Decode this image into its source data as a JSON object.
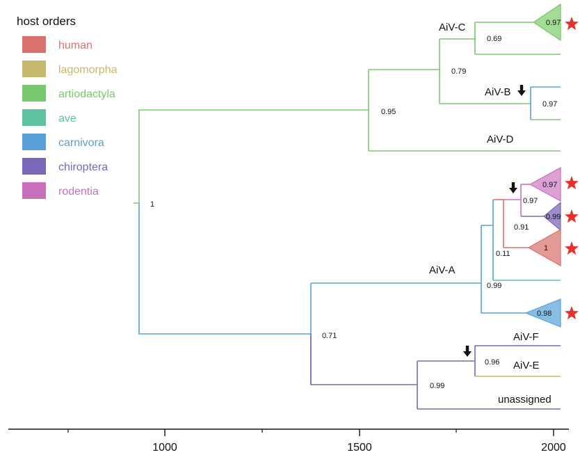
{
  "legend": {
    "title": "host orders",
    "items": [
      {
        "key": "human",
        "label": "human",
        "color": "#d9716e"
      },
      {
        "key": "lagomorpha",
        "label": "lagomorpha",
        "color": "#c6b86a"
      },
      {
        "key": "artiodactyla",
        "label": "artiodactyla",
        "color": "#78c86e"
      },
      {
        "key": "ave",
        "label": "ave",
        "color": "#5ec3a0"
      },
      {
        "key": "carnivora",
        "label": "carnivora",
        "color": "#5aa0d6"
      },
      {
        "key": "chiroptera",
        "label": "chiroptera",
        "color": "#7a67b8"
      },
      {
        "key": "rodentia",
        "label": "rodentia",
        "color": "#c970bd"
      }
    ]
  },
  "clade_labels": {
    "aiv_a": "AiV-A",
    "aiv_b": "AiV-B",
    "aiv_c": "AiV-C",
    "aiv_d": "AiV-D",
    "aiv_e": "AiV-E",
    "aiv_f": "AiV-F",
    "unassigned": "unassigned"
  },
  "support_values": {
    "root": "1",
    "green_clade": "0.95",
    "aiv_cb": "0.79",
    "aiv_c_inner": "0.69",
    "aiv_c_collapsed": "0.97",
    "aiv_b": "0.97",
    "blue_purple": "0.71",
    "aiv_a": "0.99",
    "aiv_a_inner": "0.11",
    "rodent_bat_human": "0.91",
    "rodent_bat": "0.97",
    "rodentia_collapsed": "0.97",
    "chiroptera_collapsed": "0.99",
    "human_collapsed": "1",
    "carnivora_collapsed": "0.98",
    "aiv_efu": "0.99",
    "aiv_ef": "0.96"
  },
  "axis": {
    "ticks": [
      "1000",
      "1500",
      "2000"
    ]
  },
  "markers": {
    "star_color": "#e8302c",
    "arrow_color": "#111111"
  }
}
